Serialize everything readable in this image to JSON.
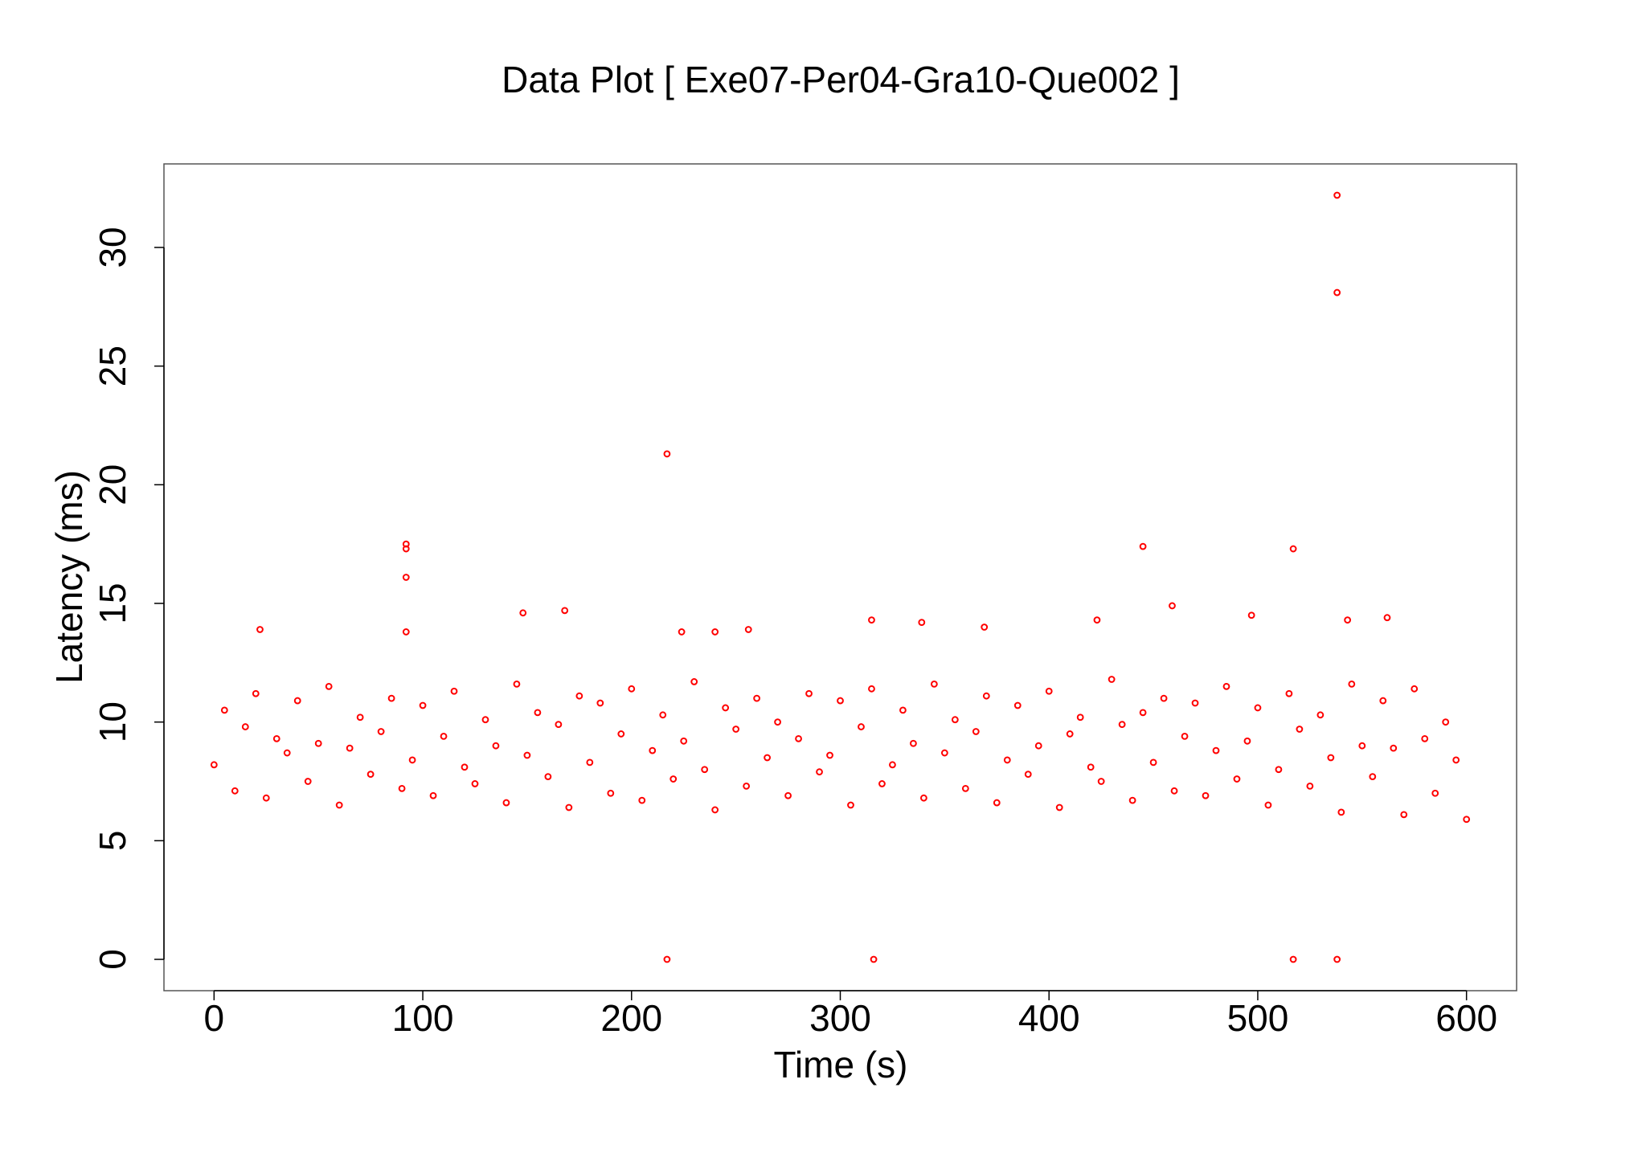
{
  "chart_data": {
    "type": "scatter",
    "title": "Data Plot [ Exe07-Per04-Gra10-Que002 ]",
    "x_label": "Time (s)",
    "y_label": "Latency (ms)",
    "color": "#ff0000",
    "grid": false,
    "xlim": [
      -24,
      624
    ],
    "ylim": [
      -1.32,
      33.52
    ],
    "xticks": [
      0,
      100,
      200,
      300,
      400,
      500,
      600
    ],
    "yticks": [
      0,
      5,
      10,
      15,
      20,
      25,
      30
    ],
    "x": [
      0,
      5,
      10,
      15,
      20,
      25,
      30,
      35,
      40,
      45,
      50,
      55,
      60,
      65,
      70,
      75,
      80,
      85,
      90,
      95,
      100,
      105,
      110,
      115,
      120,
      125,
      130,
      135,
      140,
      145,
      150,
      155,
      160,
      165,
      170,
      175,
      180,
      185,
      190,
      195,
      200,
      205,
      210,
      215,
      220,
      225,
      230,
      235,
      240,
      245,
      250,
      255,
      260,
      265,
      270,
      275,
      280,
      285,
      290,
      295,
      300,
      305,
      310,
      315,
      320,
      325,
      330,
      335,
      340,
      345,
      350,
      355,
      360,
      365,
      370,
      375,
      380,
      385,
      390,
      395,
      400,
      405,
      410,
      415,
      420,
      425,
      430,
      435,
      440,
      445,
      450,
      455,
      460,
      465,
      470,
      475,
      480,
      485,
      490,
      495,
      500,
      505,
      510,
      515,
      520,
      525,
      530,
      535,
      540,
      545,
      550,
      555,
      560,
      565,
      570,
      575,
      580,
      585,
      590,
      595,
      600,
      217,
      217,
      316,
      517,
      538,
      538,
      538,
      92,
      92,
      92,
      92,
      445,
      517,
      168,
      148,
      459,
      497,
      315,
      339,
      543,
      562,
      423,
      22,
      256,
      224,
      369,
      240
    ],
    "values": [
      8.2,
      10.5,
      7.1,
      9.8,
      11.2,
      6.8,
      9.3,
      8.7,
      10.9,
      7.5,
      9.1,
      11.5,
      6.5,
      8.9,
      10.2,
      7.8,
      9.6,
      11.0,
      7.2,
      8.4,
      10.7,
      6.9,
      9.4,
      11.3,
      8.1,
      7.4,
      10.1,
      9.0,
      6.6,
      11.6,
      8.6,
      10.4,
      7.7,
      9.9,
      6.4,
      11.1,
      8.3,
      10.8,
      7.0,
      9.5,
      11.4,
      6.7,
      8.8,
      10.3,
      7.6,
      9.2,
      11.7,
      8.0,
      6.3,
      10.6,
      9.7,
      7.3,
      11.0,
      8.5,
      10.0,
      6.9,
      9.3,
      11.2,
      7.9,
      8.6,
      10.9,
      6.5,
      9.8,
      11.4,
      7.4,
      8.2,
      10.5,
      9.1,
      6.8,
      11.6,
      8.7,
      10.1,
      7.2,
      9.6,
      11.1,
      6.6,
      8.4,
      10.7,
      7.8,
      9.0,
      11.3,
      6.4,
      9.5,
      10.2,
      8.1,
      7.5,
      11.8,
      9.9,
      6.7,
      10.4,
      8.3,
      11.0,
      7.1,
      9.4,
      10.8,
      6.9,
      8.8,
      11.5,
      7.6,
      9.2,
      10.6,
      6.5,
      8.0,
      11.2,
      9.7,
      7.3,
      10.3,
      8.5,
      6.2,
      11.6,
      9.0,
      7.7,
      10.9,
      8.9,
      6.1,
      11.4,
      9.3,
      7.0,
      10.0,
      8.4,
      5.9,
      21.3,
      0,
      0,
      0,
      0,
      32.2,
      28.1,
      17.5,
      17.3,
      16.1,
      13.8,
      17.4,
      17.3,
      14.7,
      14.6,
      14.9,
      14.5,
      14.3,
      14.2,
      14.3,
      14.4,
      14.3,
      13.9,
      13.9,
      13.8,
      14.0,
      13.8
    ]
  }
}
